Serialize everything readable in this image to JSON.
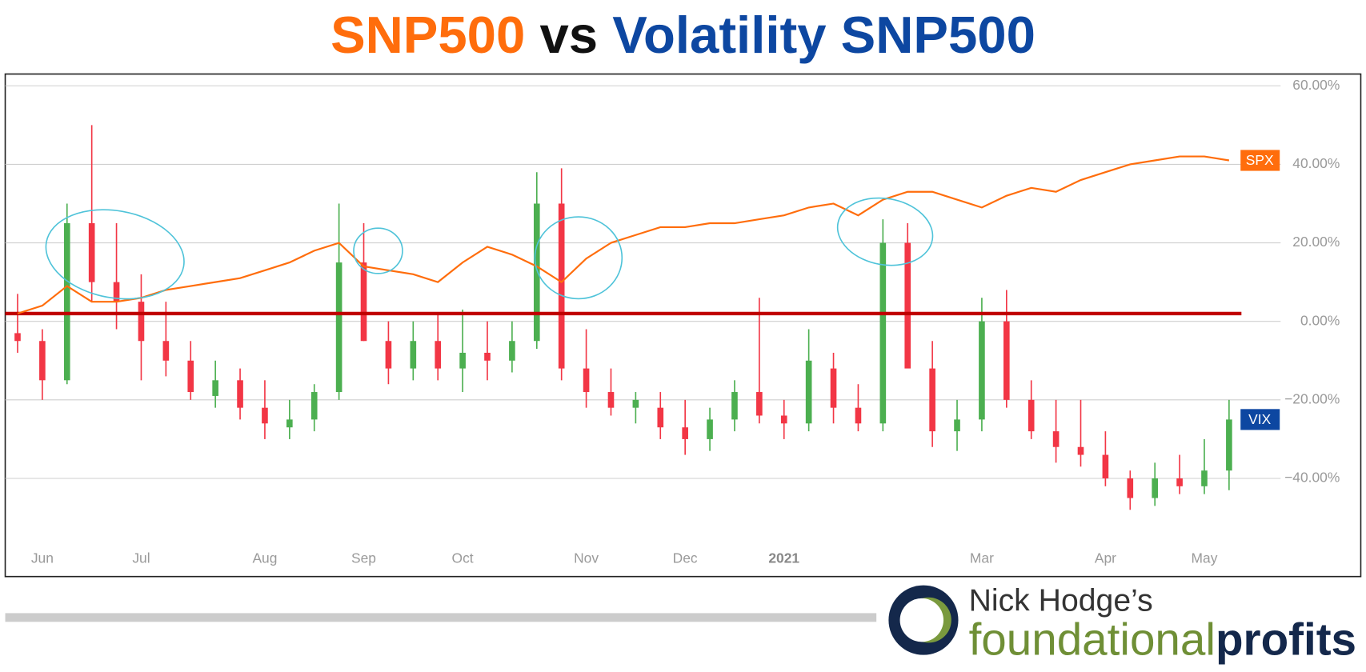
{
  "chart_data": {
    "type": "line-candlestick",
    "title_parts": [
      {
        "text": "SNP500",
        "color": "#ff6d0c"
      },
      {
        "text": "vs",
        "color": "#111111"
      },
      {
        "text": "Volatility SNP500",
        "color": "#0d47a1"
      }
    ],
    "categories": [
      null,
      "Jun",
      null,
      null,
      null,
      "Jul",
      null,
      null,
      null,
      null,
      "Aug",
      null,
      null,
      null,
      "Sep",
      null,
      null,
      null,
      "Oct",
      null,
      null,
      null,
      null,
      "Nov",
      null,
      null,
      null,
      "Dec",
      null,
      null,
      null,
      "2021",
      null,
      null,
      null,
      null,
      null,
      null,
      null,
      "Mar",
      null,
      null,
      null,
      null,
      "Apr",
      null,
      null,
      null,
      "May",
      null
    ],
    "series": [
      {
        "name": "SPX",
        "type": "line",
        "color": "#ff6d0c",
        "values": [
          2,
          4,
          9,
          5,
          5,
          6,
          8,
          9,
          10,
          11,
          13,
          15,
          18,
          20,
          14,
          13,
          12,
          10,
          15,
          19,
          17,
          14,
          10,
          16,
          20,
          22,
          24,
          24,
          25,
          25,
          26,
          27,
          29,
          30,
          27,
          31,
          33,
          33,
          31,
          29,
          32,
          34,
          33,
          36,
          38,
          40,
          41,
          42,
          42,
          41
        ]
      },
      {
        "name": "VIX",
        "type": "candlestick",
        "color": "#0d47a1",
        "up_color": "#4caf50",
        "down_color": "#f23645",
        "values": [
          [
            -3,
            7,
            -8,
            -5
          ],
          [
            -5,
            -2,
            -20,
            -15
          ],
          [
            -15,
            30,
            -16,
            25
          ],
          [
            25,
            50,
            5,
            10
          ],
          [
            10,
            25,
            -2,
            5
          ],
          [
            5,
            12,
            -15,
            -5
          ],
          [
            -5,
            5,
            -14,
            -10
          ],
          [
            -10,
            -5,
            -20,
            -18
          ],
          [
            -19,
            -10,
            -22,
            -15
          ],
          [
            -15,
            -12,
            -25,
            -22
          ],
          [
            -22,
            -15,
            -30,
            -26
          ],
          [
            -27,
            -20,
            -30,
            -25
          ],
          [
            -25,
            -16,
            -28,
            -18
          ],
          [
            -18,
            30,
            -20,
            15
          ],
          [
            15,
            25,
            -5,
            -5
          ],
          [
            -5,
            0,
            -16,
            -12
          ],
          [
            -12,
            0,
            -15,
            -5
          ],
          [
            -5,
            2,
            -15,
            -12
          ],
          [
            -12,
            3,
            -18,
            -8
          ],
          [
            -8,
            0,
            -15,
            -10
          ],
          [
            -10,
            0,
            -13,
            -5
          ],
          [
            -5,
            38,
            -7,
            30
          ],
          [
            30,
            39,
            -15,
            -12
          ],
          [
            -12,
            -2,
            -22,
            -18
          ],
          [
            -18,
            -12,
            -24,
            -22
          ],
          [
            -22,
            -18,
            -26,
            -20
          ],
          [
            -22,
            -18,
            -30,
            -27
          ],
          [
            -27,
            -20,
            -34,
            -30
          ],
          [
            -30,
            -22,
            -33,
            -25
          ],
          [
            -25,
            -15,
            -28,
            -18
          ],
          [
            -18,
            6,
            -26,
            -24
          ],
          [
            -24,
            -20,
            -30,
            -26
          ],
          [
            -26,
            -2,
            -28,
            -10
          ],
          [
            -12,
            -8,
            -26,
            -22
          ],
          [
            -22,
            -16,
            -28,
            -26
          ],
          [
            -26,
            26,
            -28,
            20
          ],
          [
            20,
            25,
            -2,
            -12
          ],
          [
            -12,
            -5,
            -32,
            -28
          ],
          [
            -28,
            -20,
            -33,
            -25
          ],
          [
            -25,
            6,
            -28,
            0
          ],
          [
            0,
            8,
            -22,
            -20
          ],
          [
            -20,
            -15,
            -30,
            -28
          ],
          [
            -28,
            -20,
            -36,
            -32
          ],
          [
            -32,
            -20,
            -37,
            -34
          ],
          [
            -34,
            -28,
            -42,
            -40
          ],
          [
            -40,
            -38,
            -48,
            -45
          ],
          [
            -45,
            -36,
            -47,
            -40
          ],
          [
            -40,
            -34,
            -44,
            -42
          ],
          [
            -42,
            -30,
            -44,
            -38
          ],
          [
            -38,
            -20,
            -43,
            -25
          ]
        ]
      }
    ],
    "reference_line": {
      "value": 2,
      "color": "#c00000"
    },
    "ylim": [
      -65,
      63
    ],
    "yticks": [
      {
        "value": 60,
        "label": "60.00%"
      },
      {
        "value": 40,
        "label": "40.00%"
      },
      {
        "value": 20,
        "label": "20.00%"
      },
      {
        "value": 0,
        "label": "0.00%"
      },
      {
        "value": -20,
        "label": "−20.00%"
      },
      {
        "value": -40,
        "label": "−40.00%"
      }
    ],
    "grid": true
  },
  "logo": {
    "line1": "Nick Hodge’s",
    "word1": "foundational",
    "word2": "profits"
  }
}
